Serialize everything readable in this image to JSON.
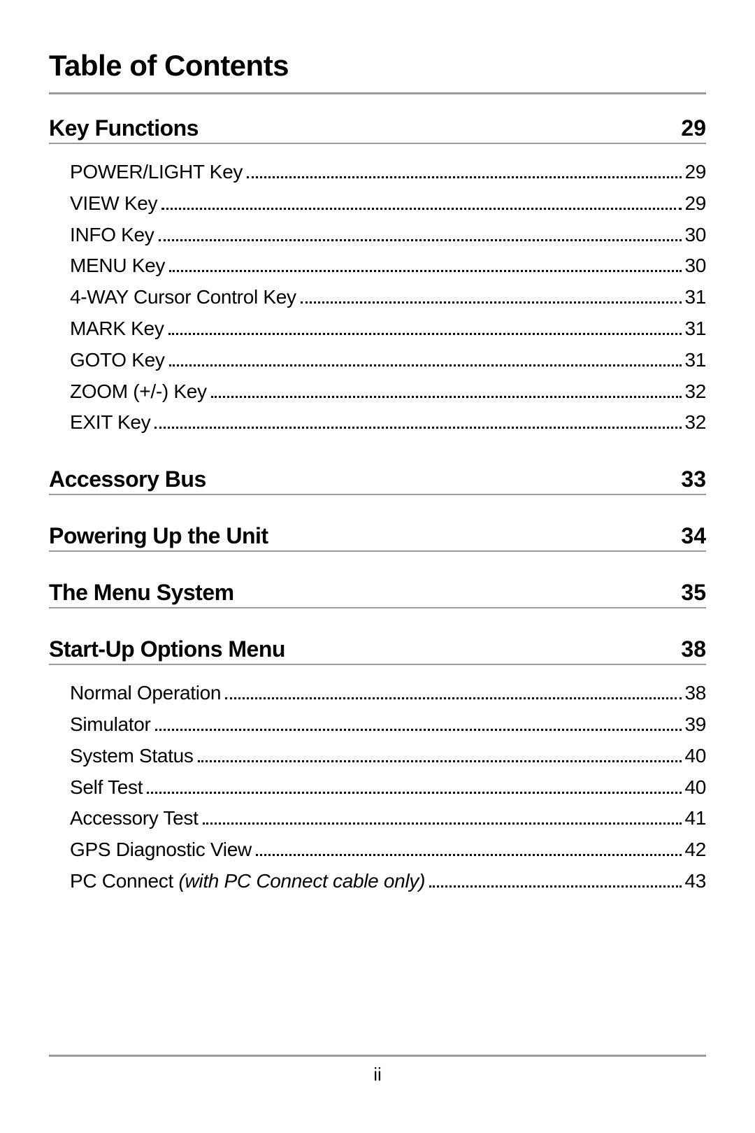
{
  "title": "Table of Contents",
  "page_number": "ii",
  "colors": {
    "rule": "#9a9a9a",
    "text": "#000000",
    "bg": "#ffffff"
  },
  "typography": {
    "title_pt": 42,
    "section_pt": 32,
    "entry_pt": 28,
    "footer_pt": 26
  },
  "sections": [
    {
      "title": "Key Functions",
      "page": "29",
      "entries": [
        {
          "label": "POWER/LIGHT Key",
          "page": "29"
        },
        {
          "label": "VIEW Key",
          "page": "29"
        },
        {
          "label": "INFO Key",
          "page": "30"
        },
        {
          "label": "MENU Key",
          "page": "30"
        },
        {
          "label": "4-WAY Cursor Control Key",
          "page": "31"
        },
        {
          "label": "MARK Key",
          "page": "31"
        },
        {
          "label": "GOTO Key",
          "page": "31"
        },
        {
          "label": "ZOOM (+/-) Key",
          "page": "32"
        },
        {
          "label": "EXIT Key",
          "page": "32"
        }
      ]
    },
    {
      "title": "Accessory Bus",
      "page": "33",
      "entries": []
    },
    {
      "title": "Powering Up the Unit",
      "page": "34",
      "entries": []
    },
    {
      "title": "The Menu System",
      "page": "35",
      "entries": []
    },
    {
      "title": "Start-Up Options Menu",
      "page": "38",
      "entries": [
        {
          "label": "Normal Operation",
          "page": "38"
        },
        {
          "label": "Simulator",
          "page": "39"
        },
        {
          "label": "System Status",
          "page": "40"
        },
        {
          "label": "Self Test",
          "page": "40"
        },
        {
          "label": "Accessory Test",
          "page": "41"
        },
        {
          "label": "GPS Diagnostic View",
          "page": "42"
        },
        {
          "label": "PC Connect",
          "note": " (with PC Connect cable only)",
          "page": "43"
        }
      ]
    }
  ]
}
